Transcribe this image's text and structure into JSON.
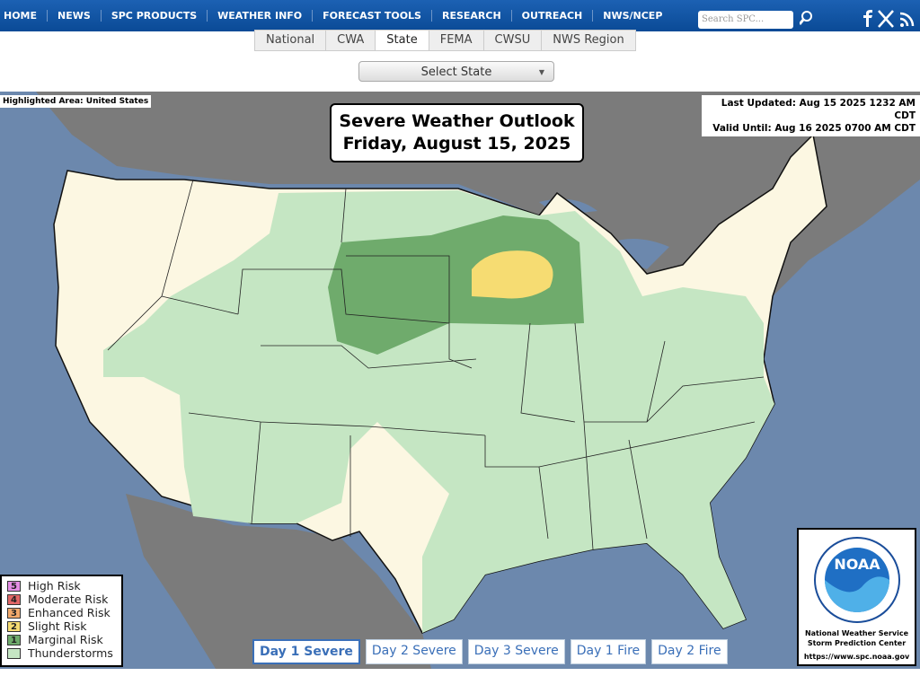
{
  "nav": {
    "items": [
      "HOME",
      "NEWS",
      "SPC PRODUCTS",
      "WEATHER INFO",
      "FORECAST TOOLS",
      "RESEARCH",
      "OUTREACH",
      "NWS/NCEP"
    ],
    "search_placeholder": "Search SPC..."
  },
  "tabs": {
    "items": [
      "National",
      "CWA",
      "State",
      "FEMA",
      "CWSU",
      "NWS Region"
    ],
    "active": 2
  },
  "select": "Select State",
  "map": {
    "highlighted_area": "Highlighted Area: United States",
    "last_updated": "Last Updated: Aug 15 2025 1232 AM CDT",
    "valid_until": "Valid Until: Aug 16 2025 0700 AM CDT",
    "title": "Severe Weather Outlook",
    "date": "Friday, August 15, 2025"
  },
  "legend": [
    {
      "number": "5",
      "label": "High Risk",
      "color": "#e58ee5"
    },
    {
      "number": "4",
      "label": "Moderate Risk",
      "color": "#e06666"
    },
    {
      "number": "3",
      "label": "Enhanced Risk",
      "color": "#f2a96b"
    },
    {
      "number": "2",
      "label": "Slight Risk",
      "color": "#f6dc72"
    },
    {
      "number": "1",
      "label": "Marginal Risk",
      "color": "#6fab6c"
    },
    {
      "label": "Thunderstorms",
      "color": "#c5e6c3"
    }
  ],
  "day_tabs": {
    "items": [
      "Day 1 Severe",
      "Day 2 Severe",
      "Day 3 Severe",
      "Day 1 Fire",
      "Day 2 Fire"
    ],
    "active": 0
  },
  "noaa": {
    "logo": "NOAA",
    "line1": "National Weather Service",
    "line2": "Storm Prediction Center",
    "url": "https://www.spc.noaa.gov"
  }
}
